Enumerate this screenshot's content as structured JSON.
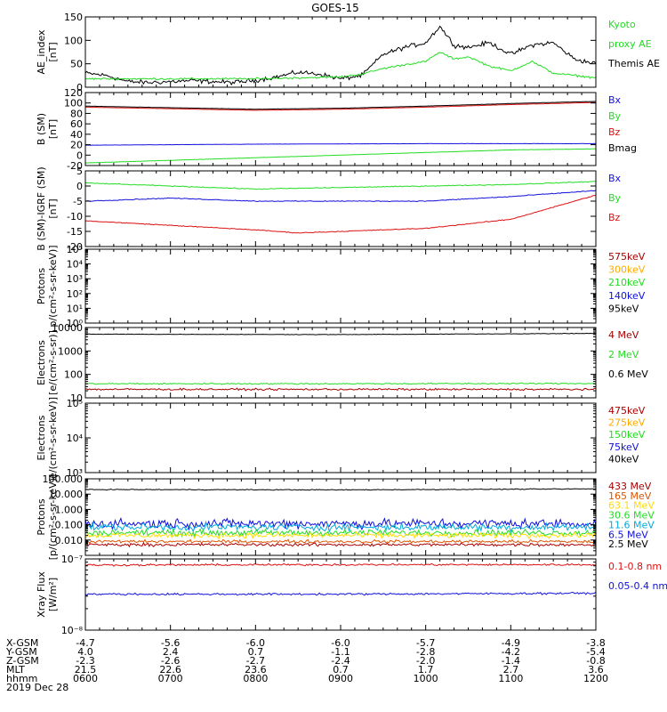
{
  "title": "GOES-15",
  "chart_data": {
    "type": "line",
    "title": "GOES-15",
    "x_range": [
      "0600",
      "1200"
    ],
    "panels": [
      {
        "id": "ae",
        "ylabel": [
          "AE_index",
          "[nT]"
        ],
        "scale": "linear",
        "ylim": [
          0,
          150
        ],
        "ticks": [
          0,
          50,
          100,
          150
        ],
        "tick_labels": [
          "0",
          "50",
          "100",
          "150"
        ],
        "legend": [
          {
            "label": "Kyoto",
            "color": "#22dd22"
          },
          {
            "label": "proxy AE",
            "color": "#22dd22"
          },
          {
            "label": "Themis AE",
            "color": "#000000"
          }
        ],
        "series": [
          {
            "name": "Themis AE",
            "color": "#000000",
            "noise": 7,
            "x": [
              "0600",
              "0615",
              "0630",
              "0645",
              "0700",
              "0715",
              "0730",
              "0745",
              "0800",
              "0815",
              "0830",
              "0845",
              "0900",
              "0915",
              "0930",
              "0945",
              "1000",
              "1010",
              "1020",
              "1030",
              "1045",
              "1100",
              "1115",
              "1130",
              "1145",
              "1200"
            ],
            "y": [
              30,
              25,
              12,
              10,
              12,
              14,
              12,
              10,
              15,
              22,
              32,
              28,
              18,
              25,
              70,
              85,
              95,
              130,
              90,
              85,
              95,
              70,
              90,
              95,
              60,
              50
            ]
          },
          {
            "name": "Kyoto proxy AE",
            "color": "#22dd22",
            "noise": 3,
            "x": [
              "0600",
              "0700",
              "0800",
              "0830",
              "0900",
              "0915",
              "0930",
              "0945",
              "1000",
              "1010",
              "1020",
              "1030",
              "1045",
              "1100",
              "1115",
              "1130",
              "1145",
              "1200"
            ],
            "y": [
              18,
              18,
              18,
              20,
              22,
              28,
              40,
              48,
              55,
              75,
              60,
              65,
              45,
              35,
              55,
              30,
              25,
              20
            ]
          }
        ]
      },
      {
        "id": "b",
        "ylabel": [
          "B (SM)",
          "[nT]"
        ],
        "scale": "linear",
        "ylim": [
          -20,
          120
        ],
        "ticks": [
          -20,
          0,
          20,
          40,
          60,
          80,
          100,
          120
        ],
        "tick_labels": [
          "-20",
          "0",
          "20",
          "40",
          "60",
          "80",
          "100",
          "120"
        ],
        "legend": [
          {
            "label": "Bx",
            "color": "#1010dd"
          },
          {
            "label": "By",
            "color": "#22dd22"
          },
          {
            "label": "Bz",
            "color": "#dd1010"
          },
          {
            "label": "Bmag",
            "color": "#000000"
          }
        ],
        "series": [
          {
            "name": "Bx",
            "color": "#1010dd",
            "noise": 0.3,
            "x": [
              "0600",
              "0800",
              "1000",
              "1200"
            ],
            "y": [
              19,
              21,
              22,
              22
            ]
          },
          {
            "name": "By",
            "color": "#22dd22",
            "noise": 0.3,
            "x": [
              "0600",
              "0700",
              "0800",
              "0900",
              "1000",
              "1100",
              "1200"
            ],
            "y": [
              -15,
              -10,
              -5,
              0,
              5,
              10,
              12
            ]
          },
          {
            "name": "Bz",
            "color": "#dd1010",
            "noise": 0.3,
            "x": [
              "0600",
              "0700",
              "0800",
              "0900",
              "1000",
              "1100",
              "1200"
            ],
            "y": [
              92,
              89,
              86,
              88,
              92,
              97,
              101
            ]
          },
          {
            "name": "Bmag",
            "color": "#000000",
            "noise": 0.3,
            "x": [
              "0600",
              "0700",
              "0800",
              "0900",
              "1000",
              "1100",
              "1200"
            ],
            "y": [
              94,
              91,
              88,
              90,
              94,
              99,
              103
            ]
          }
        ]
      },
      {
        "id": "bdiff",
        "ylabel": [
          "B (SM)-IGRF (SM)",
          "[nT]"
        ],
        "scale": "linear",
        "ylim": [
          -20,
          5
        ],
        "ticks": [
          -20,
          -15,
          -10,
          -5,
          0,
          5
        ],
        "tick_labels": [
          "-20",
          "-15",
          "-10",
          "-5",
          "0",
          "5"
        ],
        "legend": [
          {
            "label": "Bx",
            "color": "#1010dd"
          },
          {
            "label": "By",
            "color": "#22dd22"
          },
          {
            "label": "Bz",
            "color": "#dd1010"
          }
        ],
        "series": [
          {
            "name": "Bx",
            "color": "#1010dd",
            "noise": 0.2,
            "x": [
              "0600",
              "0700",
              "0800",
              "0900",
              "1000",
              "1100",
              "1200"
            ],
            "y": [
              -5,
              -4,
              -5,
              -5,
              -5,
              -3.5,
              -1.5
            ]
          },
          {
            "name": "By",
            "color": "#22dd22",
            "noise": 0.2,
            "x": [
              "0600",
              "0700",
              "0800",
              "0900",
              "1000",
              "1100",
              "1200"
            ],
            "y": [
              1,
              0,
              -1,
              -0.5,
              0,
              0.5,
              1.5
            ]
          },
          {
            "name": "Bz",
            "color": "#dd1010",
            "noise": 0.2,
            "x": [
              "0600",
              "0700",
              "0800",
              "0830",
              "0900",
              "1000",
              "1100",
              "1200"
            ],
            "y": [
              -11.5,
              -13,
              -14.5,
              -15.5,
              -15,
              -14,
              -11,
              -3
            ]
          }
        ]
      },
      {
        "id": "protons_low",
        "ylabel": [
          "Protons",
          "p/(cm²-s-sr-keV)]"
        ],
        "scale": "log",
        "ylim": [
          1,
          100000
        ],
        "ticks": [
          1,
          10,
          100,
          1000,
          10000,
          100000
        ],
        "tick_labels": [
          "10⁰",
          "10¹",
          "10²",
          "10³",
          "10⁴",
          "10⁵"
        ],
        "legend": [
          {
            "label": "575keV",
            "color": "#aa0000"
          },
          {
            "label": "300keV",
            "color": "#ffaa00"
          },
          {
            "label": "210keV",
            "color": "#22dd22"
          },
          {
            "label": "140keV",
            "color": "#1010dd"
          },
          {
            "label": "95keV",
            "color": "#000000"
          }
        ],
        "series": []
      },
      {
        "id": "electrons_high",
        "ylabel": [
          "Electrons",
          "[e/(cm²-s-sr)]"
        ],
        "scale": "log",
        "ylim": [
          10,
          10000
        ],
        "ticks": [
          10,
          100,
          1000,
          10000
        ],
        "tick_labels": [
          "10",
          "100",
          "1000",
          "10000"
        ],
        "legend": [
          {
            "label": "4 MeV",
            "color": "#aa0000"
          },
          {
            "label": "2 MeV",
            "color": "#22dd22"
          },
          {
            "label": "0.6 MeV",
            "color": "#000000"
          }
        ],
        "series": [
          {
            "name": "0.6 MeV",
            "color": "#000000",
            "noise": 0.015,
            "x": [
              "0600",
              "0900",
              "1200"
            ],
            "y": [
              5200,
              5000,
              5600
            ]
          },
          {
            "name": "2 MeV",
            "color": "#22dd22",
            "noise": 0.04,
            "x": [
              "0600",
              "0900",
              "1200"
            ],
            "y": [
              40,
              40,
              41
            ]
          },
          {
            "name": "4 MeV",
            "color": "#aa0000",
            "noise": 0.06,
            "x": [
              "0600",
              "0900",
              "1200"
            ],
            "y": [
              23,
              23,
              23
            ]
          }
        ]
      },
      {
        "id": "electrons_low",
        "ylabel": [
          "Electrons",
          "e/(cm²-s-sr-keV)]"
        ],
        "scale": "log",
        "ylim": [
          1000,
          100000
        ],
        "ticks": [
          1000,
          10000,
          100000
        ],
        "tick_labels": [
          "10³",
          "10⁴",
          "10⁵"
        ],
        "legend": [
          {
            "label": "475keV",
            "color": "#aa0000"
          },
          {
            "label": "275keV",
            "color": "#ffaa00"
          },
          {
            "label": "150keV",
            "color": "#22dd22"
          },
          {
            "label": "75keV",
            "color": "#1010dd"
          },
          {
            "label": "40keV",
            "color": "#000000"
          }
        ],
        "series": []
      },
      {
        "id": "protons_high",
        "ylabel": [
          "Protons",
          "[p/(cm²-s-sr-keV)]"
        ],
        "scale": "log",
        "ylim": [
          0.001,
          100
        ],
        "ticks": [
          0.01,
          0.1,
          1,
          10,
          100
        ],
        "tick_labels": [
          "0.010",
          "0.100",
          "1.000",
          "10.000",
          "100.000"
        ],
        "legend": [
          {
            "label": "433 MeV",
            "color": "#aa0000"
          },
          {
            "label": "165 MeV",
            "color": "#dd5500"
          },
          {
            "label": "63.1 MeV",
            "color": "#ffdd00"
          },
          {
            "label": "30.6 MeV",
            "color": "#22dd22"
          },
          {
            "label": "11.6 MeV",
            "color": "#00aadd"
          },
          {
            "label": "6.5 MeV",
            "color": "#1010dd"
          },
          {
            "label": "2.5 MeV",
            "color": "#000000"
          }
        ],
        "series": [
          {
            "name": "2.5 MeV",
            "color": "#000000",
            "noise": 0.04,
            "x": [
              "0600",
              "0900",
              "1200"
            ],
            "y": [
              20,
              19,
              22
            ]
          },
          {
            "name": "6.5 MeV",
            "color": "#1010dd",
            "noise": 0.45,
            "x": [
              "0600",
              "0900",
              "1200"
            ],
            "y": [
              0.12,
              0.12,
              0.12
            ]
          },
          {
            "name": "11.6 MeV",
            "color": "#00aadd",
            "noise": 0.35,
            "x": [
              "0600",
              "0900",
              "1200"
            ],
            "y": [
              0.07,
              0.07,
              0.07
            ]
          },
          {
            "name": "30.6 MeV",
            "color": "#22dd22",
            "noise": 0.3,
            "x": [
              "0600",
              "0900",
              "1200"
            ],
            "y": [
              0.03,
              0.03,
              0.03
            ]
          },
          {
            "name": "63.1 MeV",
            "color": "#ffdd00",
            "noise": 0.25,
            "x": [
              "0600",
              "0900",
              "1200"
            ],
            "y": [
              0.02,
              0.02,
              0.02
            ]
          },
          {
            "name": "165 MeV",
            "color": "#dd5500",
            "noise": 0.15,
            "x": [
              "0600",
              "0900",
              "1200"
            ],
            "y": [
              0.008,
              0.008,
              0.008
            ]
          },
          {
            "name": "433 MeV",
            "color": "#aa0000",
            "noise": 0.15,
            "x": [
              "0600",
              "0900",
              "1200"
            ],
            "y": [
              0.005,
              0.005,
              0.005
            ]
          }
        ]
      },
      {
        "id": "xray",
        "ylabel": [
          "Xray Flux",
          "[W/m²]"
        ],
        "scale": "log",
        "ylim": [
          1e-08,
          1e-07
        ],
        "ticks": [
          1e-08,
          1e-07
        ],
        "tick_labels": [
          "10⁻⁸",
          "10⁻⁷"
        ],
        "legend": [
          {
            "label": "0.1-0.8 nm",
            "color": "#dd1010"
          },
          {
            "label": "0.05-0.4 nm",
            "color": "#1010dd"
          }
        ],
        "series": [
          {
            "name": "0.1-0.8 nm",
            "color": "#dd1010",
            "noise": 0.02,
            "x": [
              "0600",
              "0900",
              "1200"
            ],
            "y": [
              8.2e-08,
              8.3e-08,
              8.3e-08
            ]
          },
          {
            "name": "0.05-0.4 nm",
            "color": "#1010dd",
            "noise": 0.02,
            "x": [
              "0600",
              "0900",
              "1200"
            ],
            "y": [
              3.2e-08,
              3.2e-08,
              3.3e-08
            ]
          }
        ]
      }
    ],
    "ephemeris": {
      "rows": [
        {
          "label": "X-GSM",
          "values": [
            "-4.7",
            "-5.6",
            "-6.0",
            "-6.0",
            "-5.7",
            "-4.9",
            "-3.8"
          ]
        },
        {
          "label": "Y-GSM",
          "values": [
            "4.0",
            "2.4",
            "0.7",
            "-1.1",
            "-2.8",
            "-4.2",
            "-5.4"
          ]
        },
        {
          "label": "Z-GSM",
          "values": [
            "-2.3",
            "-2.6",
            "-2.7",
            "-2.4",
            "-2.0",
            "-1.4",
            "-0.8"
          ]
        },
        {
          "label": "MLT",
          "values": [
            "21.5",
            "22.6",
            "23.6",
            "0.7",
            "1.7",
            "2.7",
            "3.6"
          ]
        },
        {
          "label": "hhmm",
          "values": [
            "0600",
            "0700",
            "0800",
            "0900",
            "1000",
            "1100",
            "1200"
          ]
        }
      ],
      "date": "2019 Dec 28"
    }
  }
}
